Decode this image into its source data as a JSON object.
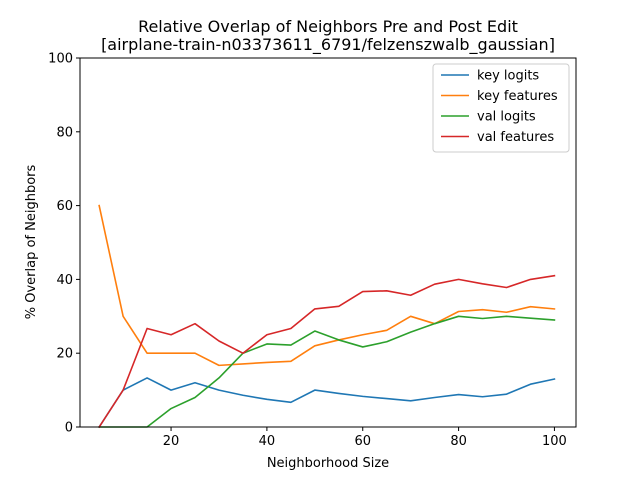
{
  "chart_data": {
    "type": "line",
    "title": "Relative Overlap of Neighbors Pre and Post Edit",
    "subtitle": "[airplane-train-n03373611_6791/felzenszwalb_gaussian]",
    "xlabel": "Neighborhood Size",
    "ylabel": "% Overlap of Neighbors",
    "xlim": [
      1,
      104.5
    ],
    "ylim": [
      0,
      100
    ],
    "xticks": [
      20,
      40,
      60,
      80,
      100
    ],
    "yticks": [
      0,
      20,
      40,
      60,
      80,
      100
    ],
    "grid": false,
    "legend_position": "top-right",
    "x": [
      5,
      10,
      15,
      20,
      25,
      30,
      35,
      40,
      45,
      50,
      55,
      60,
      65,
      70,
      75,
      80,
      85,
      90,
      95,
      100
    ],
    "series": [
      {
        "name": "key logits",
        "color": "#1f77b4",
        "values": [
          0,
          10,
          13.3,
          10,
          12,
          10,
          8.6,
          7.5,
          6.7,
          10,
          9.1,
          8.3,
          7.7,
          7.1,
          8,
          8.8,
          8.2,
          8.9,
          11.6,
          13
        ]
      },
      {
        "name": "key features",
        "color": "#ff7f0e",
        "values": [
          60,
          30,
          20,
          20,
          20,
          16.7,
          17.1,
          17.5,
          17.8,
          22,
          23.6,
          25,
          26.2,
          30,
          28,
          31.3,
          31.8,
          31.1,
          32.6,
          32
        ]
      },
      {
        "name": "val logits",
        "color": "#2ca02c",
        "values": [
          0,
          0,
          0,
          5,
          8,
          13.3,
          20,
          22.5,
          22.2,
          26,
          23.6,
          21.7,
          23.1,
          25.7,
          28,
          30,
          29.4,
          30,
          29.5,
          29
        ]
      },
      {
        "name": "val features",
        "color": "#d62728",
        "values": [
          0,
          10,
          26.7,
          25,
          28,
          23.3,
          20,
          25,
          26.7,
          32,
          32.7,
          36.7,
          36.9,
          35.7,
          38.7,
          40,
          38.8,
          37.8,
          40,
          41
        ]
      }
    ]
  }
}
